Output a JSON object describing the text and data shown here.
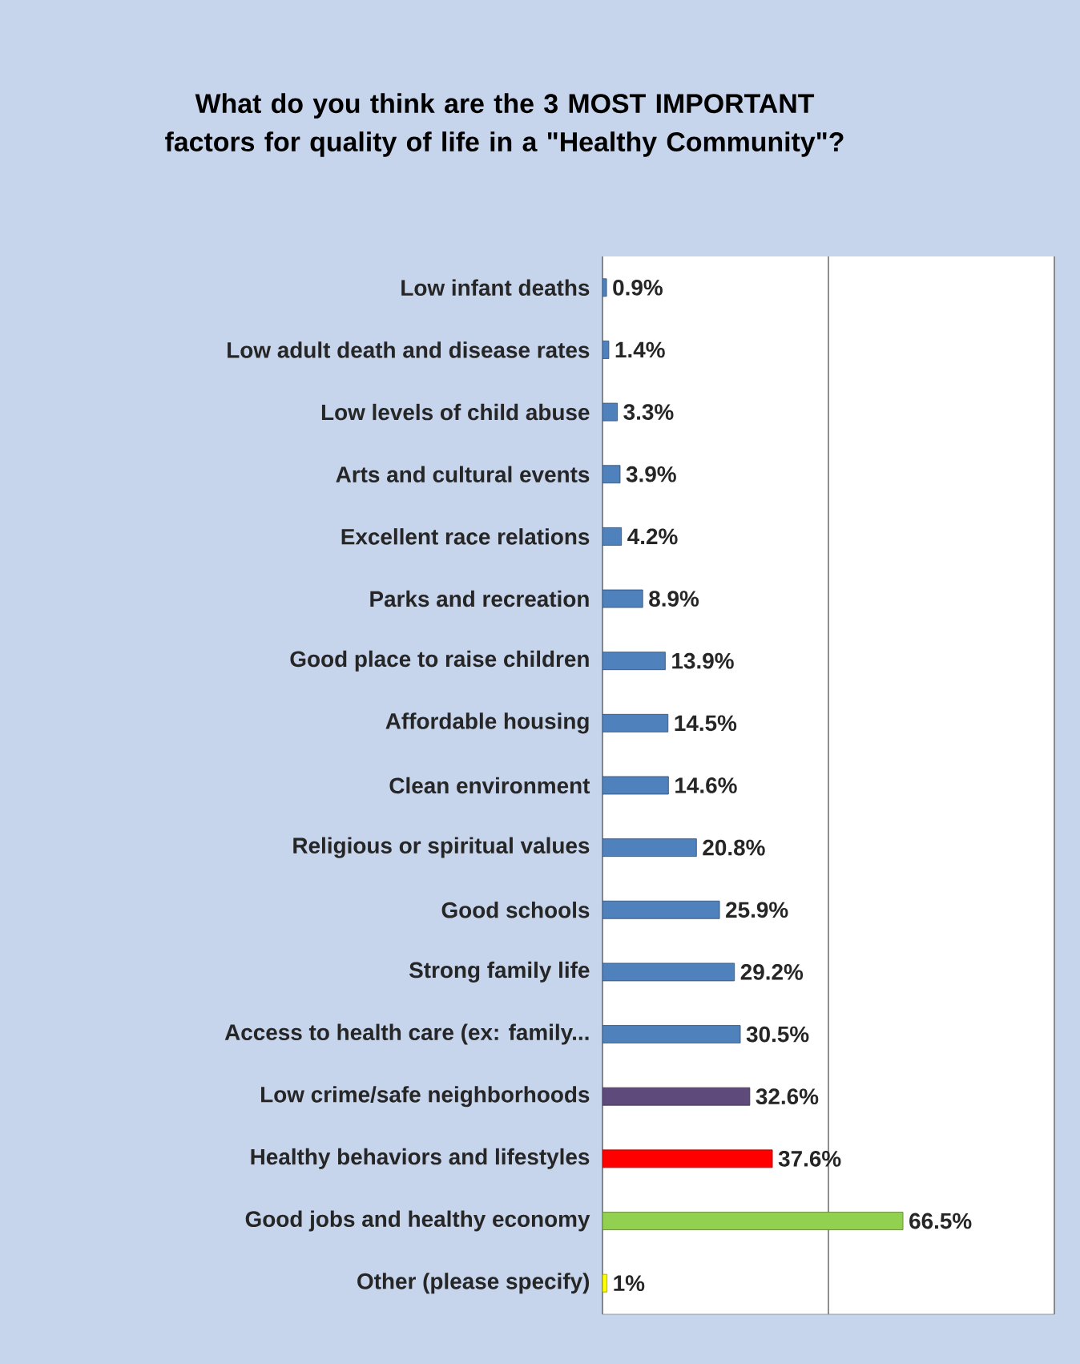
{
  "chart_data": {
    "type": "bar",
    "orientation": "horizontal",
    "title": "What do you think are the 3 MOST IMPORTANT factors for quality of life in a \"Healthy Community\"?",
    "categories": [
      "Low infant deaths",
      "Low adult death and disease rates",
      "Low levels of child abuse",
      "Arts and cultural events",
      "Excellent race relations",
      "Parks and recreation",
      "Good place to raise children",
      "Affordable housing",
      "Clean environment",
      "Religious or spiritual values",
      "Good schools",
      "Strong family life",
      "Access to health care (ex: family...",
      "Low crime/safe neighborhoods",
      "Healthy behaviors and lifestyles",
      "Good jobs and healthy economy",
      "Other (please specify)"
    ],
    "values": [
      0.9,
      1.4,
      3.3,
      3.9,
      4.2,
      8.9,
      13.9,
      14.5,
      14.6,
      20.8,
      25.9,
      29.2,
      30.5,
      32.6,
      37.6,
      66.5,
      1
    ],
    "value_labels": [
      "0.9%",
      "1.4%",
      "3.3%",
      "3.9%",
      "4.2%",
      "8.9%",
      "13.9%",
      "14.5%",
      "14.6%",
      "20.8%",
      "25.9%",
      "29.2%",
      "30.5%",
      "32.6%",
      "37.6%",
      "66.5%",
      "1%"
    ],
    "colors": [
      "#4f81bd",
      "#4f81bd",
      "#4f81bd",
      "#4f81bd",
      "#4f81bd",
      "#4f81bd",
      "#4f81bd",
      "#4f81bd",
      "#4f81bd",
      "#4f81bd",
      "#4f81bd",
      "#4f81bd",
      "#4f81bd",
      "#5f4b7b",
      "#ff0000",
      "#92d050",
      "#ffff00"
    ],
    "xlim": [
      0,
      100
    ],
    "xticks": [
      {
        "value": 0,
        "label": null
      },
      {
        "value": 50,
        "label": null
      },
      {
        "value": 100,
        "label": null
      }
    ],
    "grid": "x",
    "tick_labels": "y"
  }
}
